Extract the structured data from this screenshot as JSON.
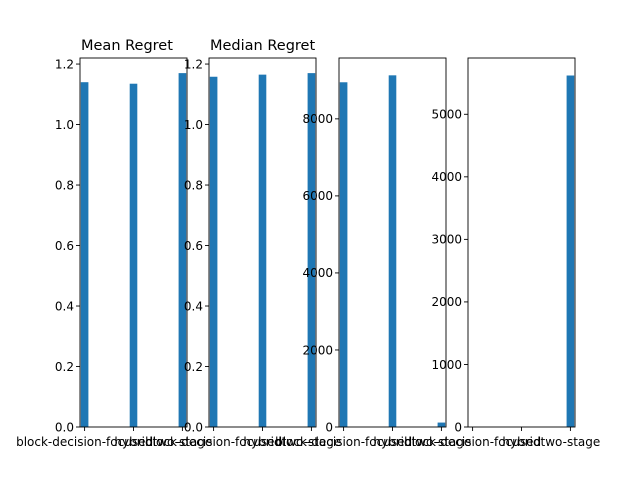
{
  "colors": {
    "bar": "#1f77b4",
    "axis": "#000000",
    "background": "#ffffff"
  },
  "chart_data": [
    {
      "type": "bar",
      "title": "Mean Regret",
      "categories": [
        "block-decision-focused",
        "hybrid",
        "two-stage"
      ],
      "values": [
        1.14,
        1.135,
        1.17
      ],
      "ylim": [
        0,
        1.22
      ],
      "yticks": [
        0.0,
        0.2,
        0.4,
        0.6,
        0.8,
        1.0,
        1.2
      ],
      "ytick_labels": [
        "0.0",
        "0.2",
        "0.4",
        "0.6",
        "0.8",
        "1.0",
        "1.2"
      ],
      "grid": false
    },
    {
      "type": "bar",
      "title": "Median Regret",
      "categories": [
        "block-decision-focused",
        "hybrid",
        "two-stage"
      ],
      "values": [
        1.158,
        1.165,
        1.17
      ],
      "ylim": [
        0,
        1.22
      ],
      "yticks": [
        0.0,
        0.2,
        0.4,
        0.6,
        0.8,
        1.0,
        1.2
      ],
      "ytick_labels": [
        "0.0",
        "0.2",
        "0.4",
        "0.6",
        "0.8",
        "1.0",
        "1.2"
      ],
      "grid": false
    },
    {
      "type": "bar",
      "title": "",
      "categories": [
        "block-decision-focused",
        "hybrid",
        "two-stage"
      ],
      "values": [
        8950,
        9130,
        115
      ],
      "ylim": [
        0,
        9580
      ],
      "yticks": [
        0,
        2000,
        4000,
        6000,
        8000
      ],
      "ytick_labels": [
        "0",
        "2000",
        "4000",
        "6000",
        "8000"
      ],
      "grid": false
    },
    {
      "type": "bar",
      "title": "",
      "categories": [
        "block-decision-focused",
        "hybrid",
        "two-stage"
      ],
      "values": [
        0,
        0,
        5620
      ],
      "ylim": [
        0,
        5900
      ],
      "yticks": [
        0,
        1000,
        2000,
        3000,
        4000,
        5000
      ],
      "ytick_labels": [
        "0",
        "1000",
        "2000",
        "3000",
        "4000",
        "5000"
      ],
      "grid": false
    }
  ]
}
